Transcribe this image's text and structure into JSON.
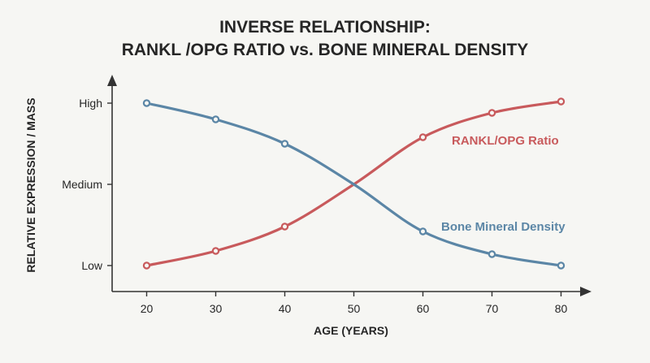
{
  "chart_data": {
    "type": "line",
    "title": "INVERSE RELATIONSHIP:",
    "subtitle": "RANKL /OPG RATIO vs. BONE MINERAL DENSITY",
    "xlabel": "AGE (YEARS)",
    "ylabel": "RELATIVE EXPRESSION / MASS",
    "x": [
      20,
      30,
      40,
      50,
      60,
      70,
      80
    ],
    "xlim": [
      15,
      83
    ],
    "ylim": [
      0,
      1
    ],
    "y_ticks": [
      {
        "label": "Low",
        "value": 0
      },
      {
        "label": "Medium",
        "value": 0.5
      },
      {
        "label": "High",
        "value": 1
      }
    ],
    "grid": false,
    "legend": "inline labels",
    "series": [
      {
        "name": "RANKL/OPG Ratio",
        "color": "#c85a5c",
        "points": [
          [
            20,
            0.0
          ],
          [
            30,
            0.09
          ],
          [
            40,
            0.24
          ],
          [
            60,
            0.79
          ],
          [
            70,
            0.94
          ],
          [
            80,
            1.01
          ]
        ],
        "curve_x": [
          20,
          30,
          40,
          50,
          60,
          70,
          80
        ],
        "curve_y": [
          0.0,
          0.09,
          0.24,
          0.5,
          0.79,
          0.94,
          1.01
        ]
      },
      {
        "name": "Bone Mineral Density",
        "color": "#5b86a6",
        "points": [
          [
            20,
            1.0
          ],
          [
            30,
            0.9
          ],
          [
            40,
            0.75
          ],
          [
            60,
            0.21
          ],
          [
            70,
            0.07
          ],
          [
            80,
            0.0
          ]
        ],
        "curve_x": [
          20,
          30,
          40,
          50,
          60,
          70,
          80
        ],
        "curve_y": [
          1.0,
          0.9,
          0.75,
          0.5,
          0.21,
          0.07,
          0.0
        ]
      }
    ]
  }
}
